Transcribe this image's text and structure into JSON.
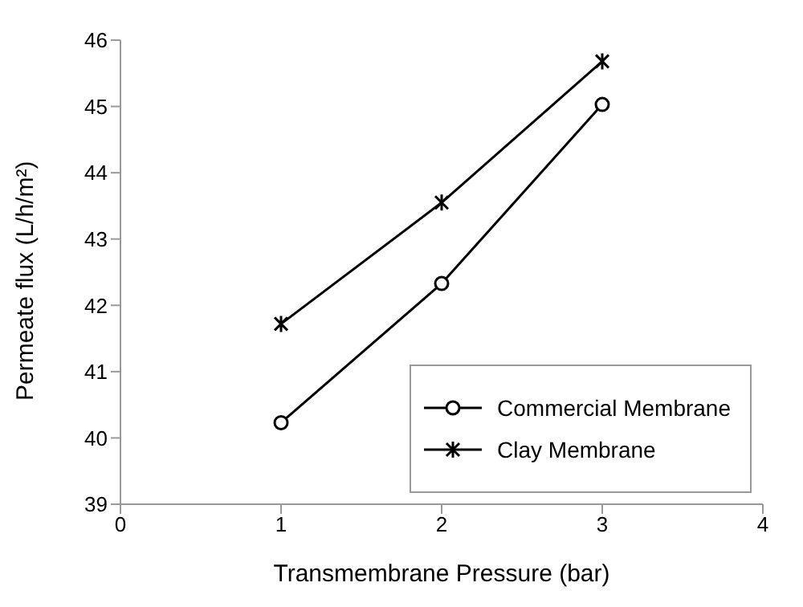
{
  "chart_data": {
    "type": "line",
    "xlabel": "Transmembrane Pressure (bar)",
    "ylabel": "Permeate flux (L/h/m²)",
    "x": [
      1,
      2,
      3
    ],
    "series": [
      {
        "name": "Commercial Membrane",
        "color": "#000000",
        "marker": "circle",
        "values": [
          40.23,
          42.33,
          45.03
        ]
      },
      {
        "name": "Clay Membrane",
        "color": "#000000",
        "marker": "cross",
        "values": [
          41.72,
          43.55,
          45.68
        ]
      }
    ],
    "xlim": [
      0,
      4
    ],
    "xticks": [
      0,
      1,
      2,
      3,
      4
    ],
    "ylim": [
      39,
      46
    ],
    "yticks": [
      39,
      40,
      41,
      42,
      43,
      44,
      45,
      46
    ],
    "grid": false,
    "legend": "bottom right"
  }
}
